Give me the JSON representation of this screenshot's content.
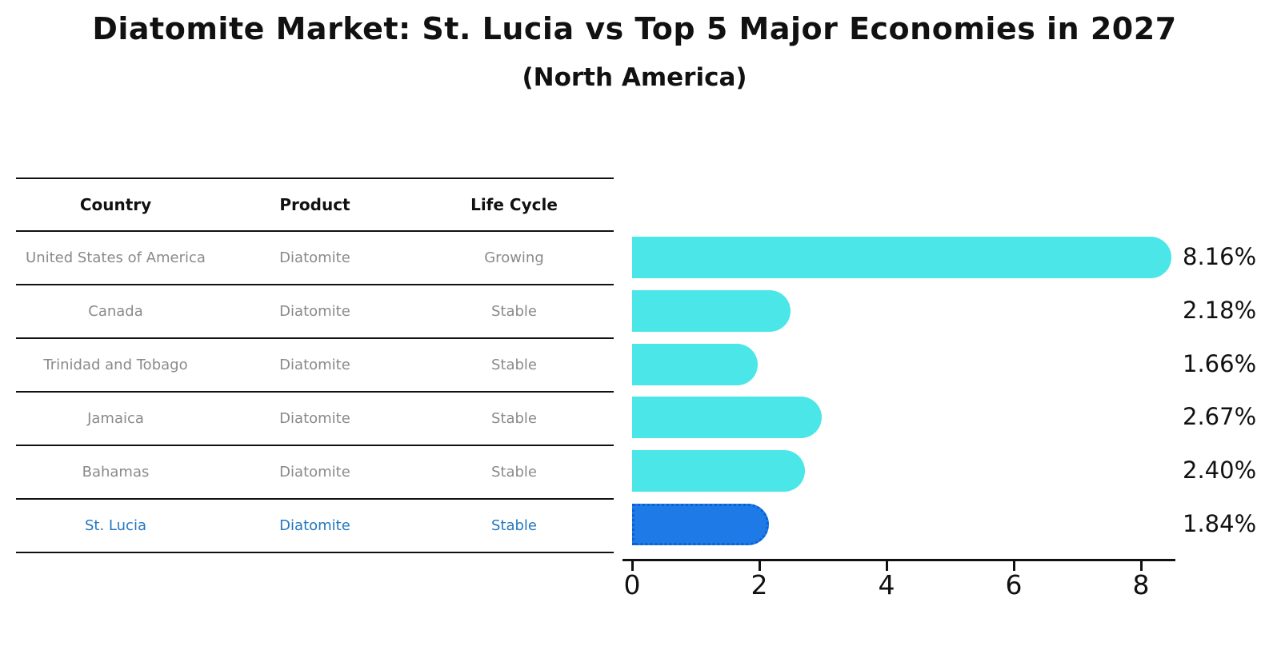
{
  "title": "Diatomite Market: St. Lucia vs Top 5 Major Economies in 2027",
  "subtitle": "(North America)",
  "table": {
    "headers": [
      "Country",
      "Product",
      "Life Cycle"
    ],
    "rows": [
      {
        "country": "United States of America",
        "product": "Diatomite",
        "life_cycle": "Growing",
        "highlighted": false
      },
      {
        "country": "Canada",
        "product": "Diatomite",
        "life_cycle": "Stable",
        "highlighted": false
      },
      {
        "country": "Trinidad and Tobago",
        "product": "Diatomite",
        "life_cycle": "Stable",
        "highlighted": false
      },
      {
        "country": "Jamaica",
        "product": "Diatomite",
        "life_cycle": "Stable",
        "highlighted": false
      },
      {
        "country": "Bahamas",
        "product": "Diatomite",
        "life_cycle": "Stable",
        "highlighted": false
      },
      {
        "country": "St. Lucia",
        "product": "Diatomite",
        "life_cycle": "Stable",
        "highlighted": true
      }
    ]
  },
  "chart_data": {
    "type": "bar",
    "orientation": "horizontal",
    "title": "Diatomite Market: St. Lucia vs Top 5 Major Economies in 2027",
    "subtitle": "(North America)",
    "categories": [
      "United States of America",
      "Canada",
      "Trinidad and Tobago",
      "Jamaica",
      "Bahamas",
      "St. Lucia"
    ],
    "values": [
      8.16,
      2.18,
      1.66,
      2.67,
      2.4,
      1.84
    ],
    "value_labels": [
      "8.16%",
      "2.18%",
      "1.66%",
      "2.67%",
      "2.40%",
      "1.84%"
    ],
    "x_ticks": [
      "0",
      "2",
      "4",
      "6",
      "8"
    ],
    "xlim": [
      0,
      8.5
    ],
    "xlabel": "",
    "ylabel": "",
    "grid": false,
    "legend": false,
    "highlight_index": 5,
    "colors": {
      "bar": "#4AE6E8",
      "highlight_bar": "#1E7AE6",
      "highlight_border": "#0D5FD6",
      "highlight_text": "#2478C0",
      "text": "#111111",
      "muted_text": "#8A8A8A"
    }
  }
}
